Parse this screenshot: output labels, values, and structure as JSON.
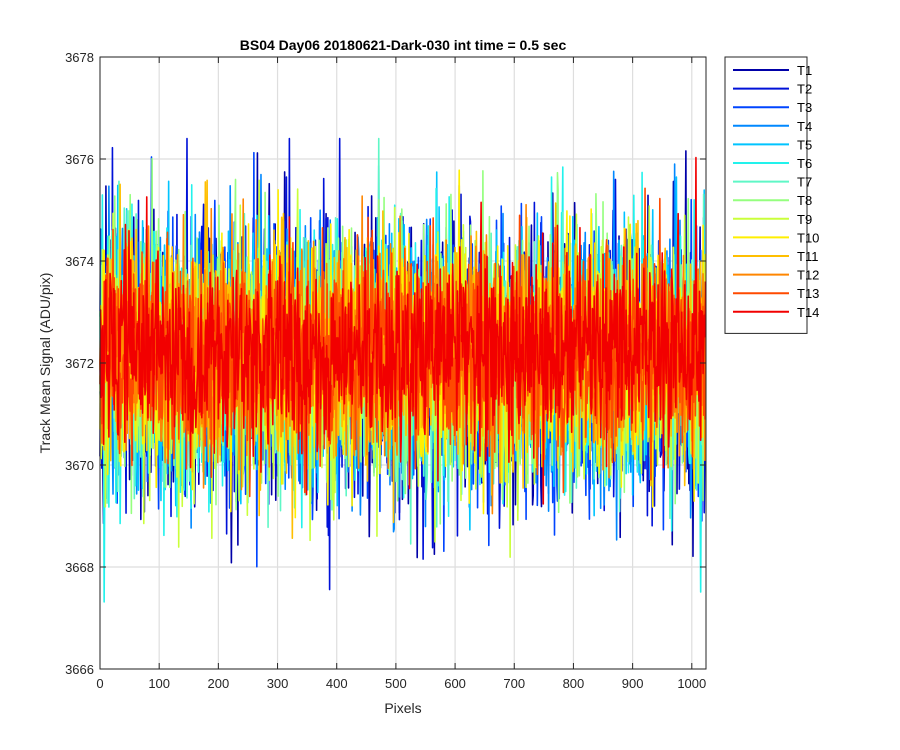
{
  "chart_data": {
    "type": "line",
    "title": "BS04 Day06 20180621-Dark-030 int time = 0.5 sec",
    "xlabel": "Pixels",
    "ylabel": "Track Mean Signal (ADU/pix)",
    "xlim": [
      0,
      1024
    ],
    "ylim": [
      3666,
      3678
    ],
    "xticks": [
      0,
      100,
      200,
      300,
      400,
      500,
      600,
      700,
      800,
      900,
      1000
    ],
    "yticks": [
      3666,
      3668,
      3670,
      3672,
      3674,
      3676,
      3678
    ],
    "grid": true,
    "legend_position": "outside-top-right",
    "points_per_series": 1024,
    "series": [
      {
        "name": "T1",
        "color": "#0000a8",
        "mean": 3672.0,
        "spread": 1.35
      },
      {
        "name": "T2",
        "color": "#0011d8",
        "mean": 3672.0,
        "spread": 1.35
      },
      {
        "name": "T3",
        "color": "#0045ff",
        "mean": 3672.0,
        "spread": 1.3
      },
      {
        "name": "T4",
        "color": "#0088ff",
        "mean": 3672.0,
        "spread": 1.3
      },
      {
        "name": "T5",
        "color": "#00c4ff",
        "mean": 3672.05,
        "spread": 1.25
      },
      {
        "name": "T6",
        "color": "#22f2ec",
        "mean": 3672.05,
        "spread": 1.25
      },
      {
        "name": "T7",
        "color": "#5ff7c6",
        "mean": 3672.1,
        "spread": 1.2
      },
      {
        "name": "T8",
        "color": "#95ff7f",
        "mean": 3672.1,
        "spread": 1.2
      },
      {
        "name": "T9",
        "color": "#caff3a",
        "mean": 3672.1,
        "spread": 1.15
      },
      {
        "name": "T10",
        "color": "#ffef00",
        "mean": 3672.15,
        "spread": 1.1
      },
      {
        "name": "T11",
        "color": "#ffbf00",
        "mean": 3672.15,
        "spread": 1.05
      },
      {
        "name": "T12",
        "color": "#ff8600",
        "mean": 3672.2,
        "spread": 1.0
      },
      {
        "name": "T13",
        "color": "#ff4a00",
        "mean": 3672.2,
        "spread": 0.95
      },
      {
        "name": "T14",
        "color": "#f20000",
        "mean": 3672.2,
        "spread": 0.95
      }
    ]
  }
}
